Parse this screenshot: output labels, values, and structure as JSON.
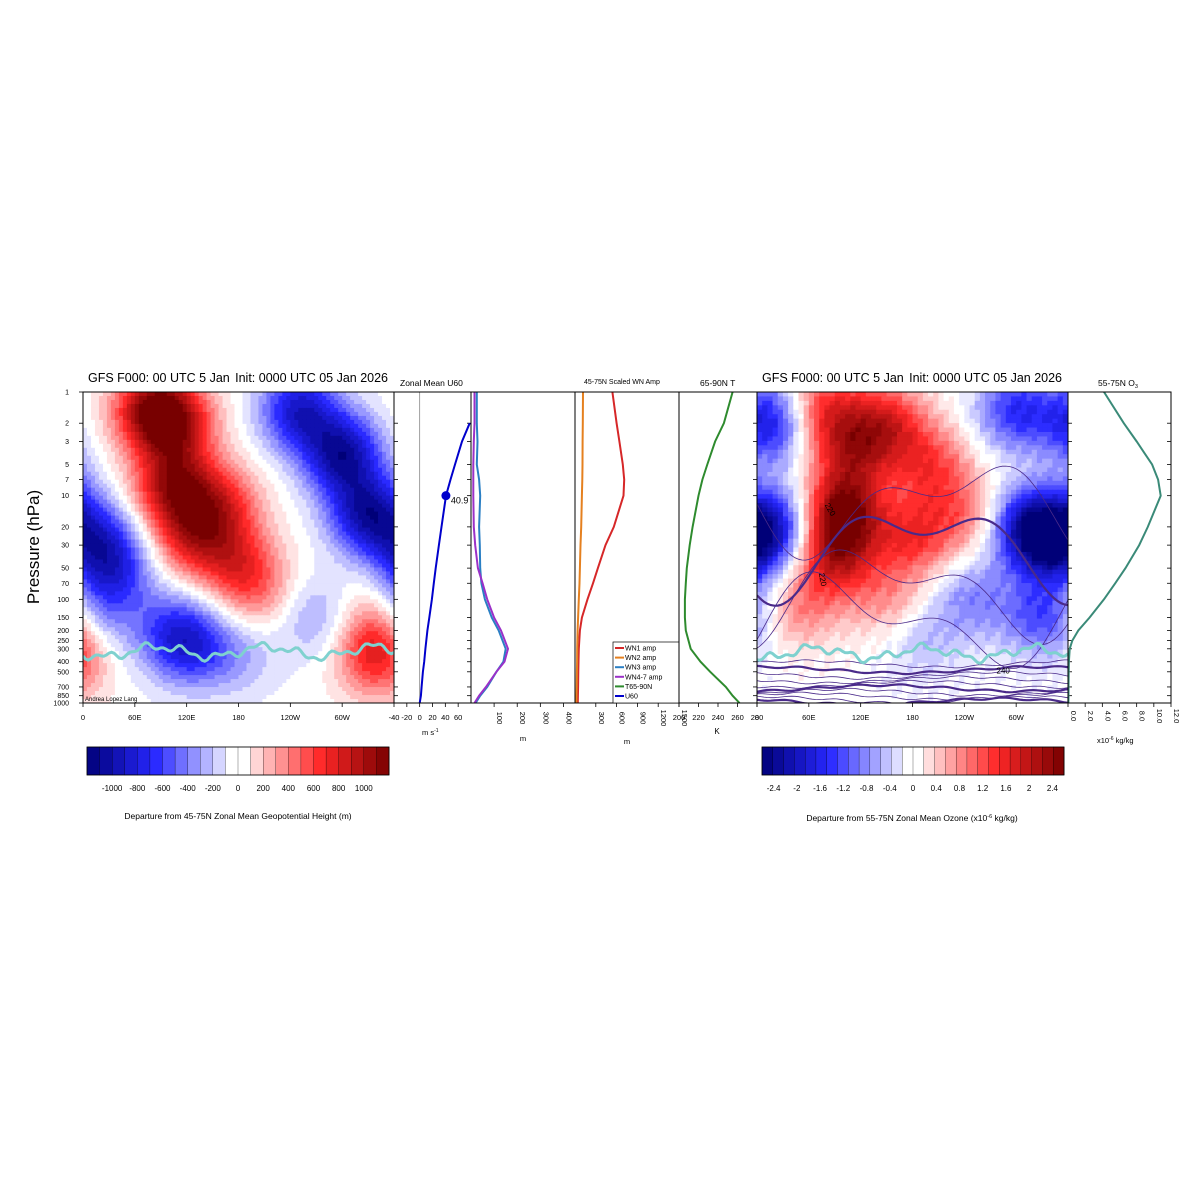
{
  "chart_data": [
    {
      "type": "heatmap",
      "panel": "geopotential-height-departure",
      "title_left": "GFS F000: 00 UTC 5 Jan",
      "title_right": "Init: 0000 UTC 05 Jan 2026",
      "ylabel": "Pressure (hPa)",
      "y_scale": "log",
      "y_reversed": true,
      "ylim": [
        1000,
        1
      ],
      "y_ticks": [
        1,
        2,
        3,
        5,
        7,
        10,
        20,
        30,
        50,
        70,
        100,
        150,
        200,
        250,
        300,
        400,
        500,
        700,
        850,
        1000
      ],
      "xlim": [
        0,
        360
      ],
      "x_ticks": [
        {
          "lon": 0,
          "label": "0"
        },
        {
          "lon": 60,
          "label": "60E"
        },
        {
          "lon": 120,
          "label": "120E"
        },
        {
          "lon": 180,
          "label": "180"
        },
        {
          "lon": 240,
          "label": "120W"
        },
        {
          "lon": 300,
          "label": "60W"
        }
      ],
      "credit": "Andrea Lopez Lang",
      "colorbar": {
        "label": "Departure from 45-75N Zonal Mean Geopotential Height (m)",
        "range": [
          -1200,
          1200
        ],
        "tick_values": [
          -1000,
          -800,
          -600,
          -400,
          -200,
          0,
          200,
          400,
          600,
          800,
          1000
        ],
        "tick_labels": [
          "-1000",
          "-800",
          "-600",
          "-400",
          "-200",
          "0",
          "200",
          "400",
          "600",
          "800",
          "1000"
        ]
      },
      "blobs": [
        {
          "lon": 80,
          "p": 1.5,
          "v": 1000
        },
        {
          "lon": 110,
          "p": 2,
          "v": 700
        },
        {
          "lon": 105,
          "p": 8,
          "v": 950
        },
        {
          "lon": 125,
          "p": 25,
          "v": 650
        },
        {
          "lon": 160,
          "p": 12,
          "v": 600
        },
        {
          "lon": 175,
          "p": 40,
          "v": 500
        },
        {
          "lon": 200,
          "p": 80,
          "v": 400
        },
        {
          "lon": 340,
          "p": 350,
          "v": 700
        },
        {
          "lon": 345,
          "p": 160,
          "v": 450
        },
        {
          "lon": 300,
          "p": 4,
          "v": -1000
        },
        {
          "lon": 330,
          "p": 15,
          "v": -950
        },
        {
          "lon": 250,
          "p": 1.5,
          "v": -850
        },
        {
          "lon": 20,
          "p": 30,
          "v": -700
        },
        {
          "lon": 10,
          "p": 150,
          "v": -500
        },
        {
          "lon": 40,
          "p": 60,
          "v": -450
        },
        {
          "lon": 125,
          "p": 280,
          "v": -600
        },
        {
          "lon": 100,
          "p": 200,
          "v": -400
        },
        {
          "lon": 180,
          "p": 350,
          "v": -250
        },
        {
          "lon": 270,
          "p": 150,
          "v": -300
        }
      ],
      "tropopause": {
        "name": "tropopause",
        "color": "#7fd1cf",
        "mean_p": 320
      }
    },
    {
      "type": "line",
      "panel": "zonal-mean-u60",
      "title": "Zonal Mean U60",
      "xlabel": "m s",
      "xlabel_sup": "-1",
      "xlim": [
        -40,
        80
      ],
      "x_tick_values": [
        -40,
        -20,
        0,
        20,
        40,
        60
      ],
      "x_tick_labels": [
        "-40",
        "-20",
        "0",
        "20",
        "40",
        "60"
      ],
      "series": [
        {
          "color": "#0000cc",
          "p": [
            1000,
            850,
            700,
            500,
            400,
            300,
            200,
            150,
            100,
            70,
            50,
            30,
            20,
            10,
            7,
            5,
            3,
            2
          ],
          "x": [
            0,
            2,
            3,
            5,
            7,
            9,
            12,
            15,
            19,
            22,
            25,
            30,
            34,
            41,
            48,
            55,
            66,
            78
          ]
        }
      ],
      "marker": {
        "p": 10,
        "x": 40.9,
        "label": "40.9"
      }
    },
    {
      "type": "line",
      "panel": "scaled-wn-amplitudes",
      "title": "45-75N Scaled WN Amp",
      "legend_position": "bottom-right",
      "axes": [
        {
          "xlabel": "m",
          "xlim": [
            0,
            450
          ],
          "x_tick_values": [
            100,
            200,
            300,
            400
          ],
          "x_tick_labels": [
            "100",
            "200",
            "300",
            "400"
          ]
        },
        {
          "xlabel": "m",
          "xlim": [
            0,
            1500
          ],
          "x_tick_values": [
            300,
            600,
            900,
            1200,
            1500
          ],
          "x_tick_labels": [
            "300",
            "600",
            "900",
            "1200",
            "1500"
          ]
        }
      ],
      "series": [
        {
          "name": "WN1 amp",
          "axis": 1,
          "color": "#d62728",
          "p": [
            1000,
            850,
            700,
            500,
            400,
            300,
            200,
            150,
            100,
            70,
            50,
            30,
            20,
            10,
            7,
            5,
            3,
            2,
            1
          ],
          "x": [
            40,
            42,
            45,
            48,
            50,
            55,
            70,
            100,
            180,
            260,
            330,
            440,
            560,
            700,
            710,
            690,
            640,
            600,
            540
          ]
        },
        {
          "name": "WN2 amp",
          "axis": 1,
          "color": "#e5801f",
          "p": [
            1000,
            850,
            700,
            500,
            400,
            300,
            200,
            150,
            100,
            70,
            50,
            30,
            20,
            10,
            7,
            5,
            3,
            2,
            1
          ],
          "x": [
            20,
            22,
            25,
            28,
            30,
            32,
            38,
            45,
            55,
            65,
            70,
            80,
            90,
            100,
            105,
            108,
            110,
            112,
            115
          ]
        },
        {
          "name": "WN3 amp",
          "axis": 0,
          "color": "#2a7fc4",
          "p": [
            1000,
            850,
            700,
            500,
            400,
            300,
            200,
            150,
            100,
            70,
            50,
            30,
            20,
            10,
            7,
            5,
            3,
            2,
            1
          ],
          "x": [
            20,
            40,
            70,
            110,
            140,
            150,
            120,
            90,
            60,
            45,
            40,
            38,
            35,
            40,
            35,
            25,
            28,
            25,
            25
          ]
        },
        {
          "name": "WN4-7 amp",
          "axis": 0,
          "color": "#9b30c8",
          "p": [
            1000,
            850,
            700,
            500,
            400,
            300,
            200,
            150,
            100,
            70,
            50,
            30,
            20,
            10,
            7,
            5,
            3,
            2,
            1
          ],
          "x": [
            15,
            35,
            65,
            110,
            145,
            160,
            130,
            100,
            70,
            50,
            30,
            18,
            12,
            10,
            10,
            10,
            12,
            15,
            15
          ]
        },
        {
          "name": "T65-90N",
          "axis": null,
          "color": "#2e8b2e",
          "legend_only": true
        },
        {
          "name": "U60",
          "axis": null,
          "color": "#0000cc",
          "legend_only": true
        }
      ]
    },
    {
      "type": "line",
      "panel": "polar-cap-temperature",
      "title": "65-90N T",
      "xlabel": "K",
      "xlim": [
        200,
        280
      ],
      "x_tick_values": [
        200,
        220,
        240,
        260,
        280
      ],
      "x_tick_labels": [
        "200",
        "220",
        "240",
        "260",
        "280"
      ],
      "series": [
        {
          "color": "#2e8b2e",
          "p": [
            1000,
            850,
            700,
            500,
            400,
            300,
            200,
            150,
            100,
            70,
            50,
            30,
            20,
            10,
            7,
            5,
            3,
            2,
            1
          ],
          "x": [
            262,
            255,
            248,
            232,
            222,
            212,
            207,
            206,
            206,
            207,
            208,
            211,
            214,
            220,
            224,
            229,
            237,
            246,
            255
          ]
        }
      ]
    },
    {
      "type": "heatmap",
      "panel": "ozone-departure",
      "title_left": "GFS F000: 00 UTC 5 Jan",
      "title_right": "Init: 0000 UTC 05 Jan 2026",
      "y_scale": "log",
      "y_reversed": true,
      "ylim": [
        1000,
        1
      ],
      "xlim": [
        0,
        360
      ],
      "x_ticks": [
        {
          "lon": 0,
          "label": "0"
        },
        {
          "lon": 60,
          "label": "60E"
        },
        {
          "lon": 120,
          "label": "120E"
        },
        {
          "lon": 180,
          "label": "180"
        },
        {
          "lon": 240,
          "label": "120W"
        },
        {
          "lon": 300,
          "label": "60W"
        }
      ],
      "colorbar": {
        "label": "Departure from 55-75N Zonal Mean Ozone (x10",
        "label_sup": "-6",
        "label_end": " kg/kg)",
        "range": [
          -2.6,
          2.6
        ],
        "tick_values": [
          -2.4,
          -2,
          -1.6,
          -1.2,
          -0.8,
          -0.4,
          0,
          0.4,
          0.8,
          1.2,
          1.6,
          2,
          2.4
        ],
        "tick_labels": [
          "-2.4",
          "-2",
          "-1.6",
          "-1.2",
          "-0.8",
          "-0.4",
          "0",
          "0.4",
          "0.8",
          "1.2",
          "1.6",
          "2",
          "2.4"
        ]
      },
      "blobs": [
        {
          "lon": 100,
          "p": 15,
          "v": 2.4
        },
        {
          "lon": 90,
          "p": 40,
          "v": 1.6
        },
        {
          "lon": 110,
          "p": 4,
          "v": 1.4
        },
        {
          "lon": 150,
          "p": 2,
          "v": 1.5
        },
        {
          "lon": 80,
          "p": 1.5,
          "v": 1.4
        },
        {
          "lon": 200,
          "p": 5,
          "v": 1.2
        },
        {
          "lon": 180,
          "p": 25,
          "v": 1.3
        },
        {
          "lon": 240,
          "p": 15,
          "v": 0.9
        },
        {
          "lon": 50,
          "p": 120,
          "v": 0.8
        },
        {
          "lon": 150,
          "p": 100,
          "v": 0.7
        },
        {
          "lon": 315,
          "p": 20,
          "v": -2.0
        },
        {
          "lon": 345,
          "p": 30,
          "v": -1.6
        },
        {
          "lon": 20,
          "p": 20,
          "v": -1.6
        },
        {
          "lon": 15,
          "p": 2,
          "v": -1.7
        },
        {
          "lon": 300,
          "p": 1.5,
          "v": -1.4
        },
        {
          "lon": 250,
          "p": 100,
          "v": -0.8
        },
        {
          "lon": 330,
          "p": 150,
          "v": -1.2
        },
        {
          "lon": 190,
          "p": 250,
          "v": -0.5
        }
      ],
      "contour_labels": [
        {
          "text": "220",
          "lon": 82,
          "p": 14,
          "rotate": 60
        },
        {
          "text": "220",
          "lon": 73,
          "p": 65,
          "rotate": 80
        },
        {
          "text": "240",
          "lon": 285,
          "p": 520,
          "rotate": 0
        }
      ],
      "tropopause": {
        "name": "tropopause",
        "color": "#7fd1cf",
        "mean_p": 330
      }
    },
    {
      "type": "line",
      "panel": "ozone-profile",
      "title": "55-75N O",
      "title_sub": "3",
      "xlabel_prefix": "x10",
      "xlabel_sup": "-6",
      "xlabel_end": " kg/kg",
      "xlim": [
        0,
        12
      ],
      "x_tick_values": [
        0,
        2,
        4,
        6,
        8,
        10,
        12
      ],
      "x_tick_labels": [
        "0.0",
        "2.0",
        "4.0",
        "6.0",
        "8.0",
        "10.0",
        "12.0"
      ],
      "series": [
        {
          "color": "#3a8a78",
          "p": [
            1000,
            850,
            700,
            500,
            400,
            300,
            250,
            200,
            150,
            100,
            70,
            50,
            30,
            20,
            10,
            7,
            5,
            3,
            2,
            1
          ],
          "x": [
            0.05,
            0.06,
            0.06,
            0.08,
            0.1,
            0.2,
            0.5,
            1.2,
            2.5,
            4.2,
            5.5,
            6.7,
            8.3,
            9.3,
            10.8,
            10.5,
            9.8,
            8.0,
            6.5,
            4.2
          ]
        }
      ]
    }
  ]
}
